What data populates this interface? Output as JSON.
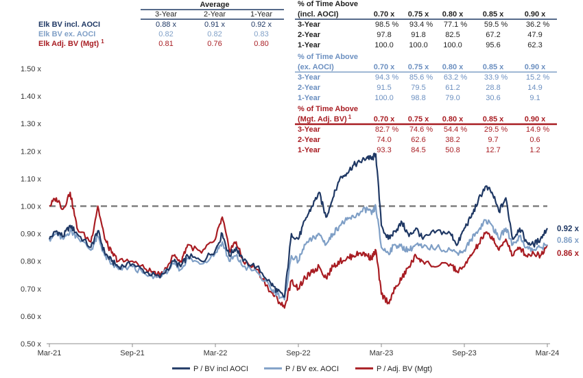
{
  "avg_table": {
    "title": "Average",
    "columns": [
      "3-Year",
      "2-Year",
      "1-Year"
    ],
    "rows": [
      {
        "name": "Elk BV incl. AOCI",
        "sup": "",
        "values": [
          "0.88 x",
          "0.91 x",
          "0.92 x"
        ],
        "color": "#1f3864"
      },
      {
        "name": "Elk BV ex. AOCI",
        "sup": "",
        "values": [
          "0.82",
          "0.82",
          "0.83"
        ],
        "color": "#7f9fc6"
      },
      {
        "name": "Elk Adj. BV (Mgt)",
        "sup": "1",
        "values": [
          "0.81",
          "0.76",
          "0.80"
        ],
        "color": "#a81c22"
      }
    ]
  },
  "pct_tables": [
    {
      "title1": "% of Time Above",
      "title2": "(incl. AOCI)",
      "sup": "",
      "color": "#1f1f1f",
      "line_color": "#1f3864",
      "columns": [
        "0.70 x",
        "0.75 x",
        "0.80 x",
        "0.85 x",
        "0.90 x"
      ],
      "rows": [
        {
          "label": "3-Year",
          "values": [
            "98.5 %",
            "93.4 %",
            "77.1 %",
            "59.5 %",
            "36.2 %"
          ]
        },
        {
          "label": "2-Year",
          "values": [
            "97.8",
            "91.8",
            "82.5",
            "67.2",
            "47.9"
          ]
        },
        {
          "label": "1-Year",
          "values": [
            "100.0",
            "100.0",
            "100.0",
            "95.6",
            "62.3"
          ]
        }
      ]
    },
    {
      "title1": "% of Time Above",
      "title2": "(ex. AOCI)",
      "sup": "",
      "color": "#6b8fc0",
      "line_color": "#7f9fc6",
      "columns": [
        "0.70 x",
        "0.75 x",
        "0.80 x",
        "0.85 x",
        "0.90 x"
      ],
      "rows": [
        {
          "label": "3-Year",
          "values": [
            "94.3 %",
            "85.6 %",
            "63.2 %",
            "33.9 %",
            "15.2 %"
          ]
        },
        {
          "label": "2-Year",
          "values": [
            "91.5",
            "79.5",
            "61.2",
            "28.8",
            "14.9"
          ]
        },
        {
          "label": "1-Year",
          "values": [
            "100.0",
            "98.8",
            "79.0",
            "30.6",
            "9.1"
          ]
        }
      ]
    },
    {
      "title1": "% of Time Above",
      "title2": "(Mgt. Adj. BV)",
      "sup": "1",
      "color": "#a81c22",
      "line_color": "#a81c22",
      "columns": [
        "0.70 x",
        "0.75 x",
        "0.80 x",
        "0.85 x",
        "0.90 x"
      ],
      "rows": [
        {
          "label": "3-Year",
          "values": [
            "82.7 %",
            "74.6 %",
            "54.4 %",
            "29.5 %",
            "14.9 %"
          ]
        },
        {
          "label": "2-Year",
          "values": [
            "74.0",
            "62.6",
            "38.2",
            "9.7",
            "0.6"
          ]
        },
        {
          "label": "1-Year",
          "values": [
            "93.3",
            "84.5",
            "50.8",
            "12.7",
            "1.2"
          ]
        }
      ]
    }
  ],
  "chart_data": {
    "type": "line",
    "title": "",
    "xlabel": "",
    "ylabel": "",
    "y_tick_labels": [
      "0.50 x",
      "0.60 x",
      "0.70 x",
      "0.80 x",
      "0.90 x",
      "1.00 x",
      "1.10 x",
      "1.20 x",
      "1.30 x",
      "1.40 x",
      "1.50 x"
    ],
    "y_ticks": [
      0.5,
      0.6,
      0.7,
      0.8,
      0.9,
      1.0,
      1.1,
      1.2,
      1.3,
      1.4,
      1.5
    ],
    "ylim": [
      0.5,
      1.5
    ],
    "xlim": [
      0,
      36
    ],
    "x_tick_labels": [
      "Mar-21",
      "Sep-21",
      "Mar-22",
      "Sep-22",
      "Mar-23",
      "Sep-23",
      "Mar-24"
    ],
    "x_ticks": [
      0,
      6,
      12,
      18,
      24,
      30,
      36
    ],
    "x_unit": "months since Mar-21",
    "reference_line": {
      "y": 1.0,
      "style": "dashed",
      "color": "#7f7f7f"
    },
    "legend_position": "bottom-center",
    "series": [
      {
        "name": "P / BV incl AOCI",
        "color": "#1f3864",
        "end_label": "0.92 x",
        "x": [
          0,
          0.5,
          1,
          1.5,
          2,
          3,
          3.5,
          4,
          4.5,
          5,
          6,
          7,
          8,
          9,
          9.5,
          10,
          11,
          12,
          12.5,
          13,
          13.5,
          14,
          15,
          16,
          16.5,
          17,
          17.5,
          18,
          18.5,
          19,
          19.5,
          20,
          20.5,
          21,
          21.5,
          22,
          22.5,
          23,
          23.3,
          23.6,
          24,
          24.5,
          25,
          25.5,
          26,
          26.5,
          27,
          28,
          29,
          29.5,
          30,
          30.5,
          31,
          31.5,
          32,
          32.5,
          33,
          33.5,
          34,
          34.5,
          35,
          35.5,
          36
        ],
        "values": [
          0.88,
          0.91,
          0.89,
          0.93,
          0.9,
          0.85,
          0.91,
          0.83,
          0.8,
          0.78,
          0.79,
          0.76,
          0.74,
          0.8,
          0.78,
          0.82,
          0.8,
          0.84,
          0.9,
          0.82,
          0.85,
          0.8,
          0.78,
          0.72,
          0.69,
          0.67,
          0.9,
          0.88,
          0.95,
          1.0,
          1.05,
          0.96,
          1.03,
          1.1,
          1.12,
          1.15,
          1.16,
          1.18,
          1.17,
          1.19,
          0.93,
          0.88,
          0.91,
          0.94,
          0.89,
          0.92,
          0.88,
          0.91,
          0.9,
          0.86,
          0.92,
          0.96,
          1.02,
          1.07,
          1.05,
          0.98,
          1.03,
          0.88,
          0.92,
          0.87,
          0.86,
          0.88,
          0.92
        ]
      },
      {
        "name": "P / BV ex. AOCI",
        "color": "#7f9fc6",
        "end_label": "0.86 x",
        "x": [
          0,
          0.5,
          1,
          1.5,
          2,
          3,
          3.5,
          4,
          4.5,
          5,
          6,
          7,
          8,
          9,
          9.5,
          10,
          11,
          12,
          12.5,
          13,
          13.5,
          14,
          15,
          16,
          16.5,
          17,
          17.5,
          18,
          18.5,
          19,
          19.5,
          20,
          20.5,
          21,
          21.5,
          22,
          22.5,
          23,
          23.3,
          23.6,
          24,
          24.5,
          25,
          25.5,
          26,
          26.5,
          27,
          28,
          29,
          29.5,
          30,
          30.5,
          31,
          31.5,
          32,
          32.5,
          33,
          33.5,
          34,
          34.5,
          35,
          35.5,
          36
        ],
        "values": [
          0.88,
          0.9,
          0.88,
          0.91,
          0.89,
          0.84,
          0.89,
          0.82,
          0.79,
          0.77,
          0.78,
          0.75,
          0.74,
          0.79,
          0.77,
          0.81,
          0.79,
          0.83,
          0.87,
          0.8,
          0.82,
          0.78,
          0.76,
          0.7,
          0.68,
          0.66,
          0.82,
          0.8,
          0.86,
          0.88,
          0.9,
          0.86,
          0.9,
          0.93,
          0.95,
          0.96,
          0.98,
          0.99,
          0.97,
          1.0,
          0.85,
          0.83,
          0.86,
          0.85,
          0.84,
          0.86,
          0.85,
          0.85,
          0.84,
          0.83,
          0.84,
          0.88,
          0.91,
          0.95,
          0.93,
          0.88,
          0.92,
          0.86,
          0.89,
          0.85,
          0.84,
          0.85,
          0.86
        ]
      },
      {
        "name": "P / Adj. BV (Mgt)",
        "color": "#a81c22",
        "end_label": "0.86 x",
        "x": [
          0,
          0.5,
          1,
          1.5,
          2,
          3,
          3.5,
          4,
          4.5,
          5,
          6,
          7,
          8,
          9,
          9.5,
          10,
          11,
          12,
          12.5,
          13,
          13.5,
          14,
          15,
          16,
          16.5,
          17,
          17.5,
          18,
          18.5,
          19,
          19.5,
          20,
          20.5,
          21,
          21.5,
          22,
          22.5,
          23,
          23.3,
          23.6,
          24,
          24.5,
          25,
          25.5,
          26,
          26.5,
          27,
          28,
          29,
          29.5,
          30,
          30.5,
          31,
          31.5,
          32,
          32.5,
          33,
          33.5,
          34,
          34.5,
          35,
          35.5,
          36
        ],
        "values": [
          1.0,
          1.03,
          0.99,
          1.05,
          0.92,
          0.87,
          1.0,
          0.88,
          0.83,
          0.8,
          0.8,
          0.77,
          0.75,
          0.82,
          0.8,
          0.86,
          0.83,
          0.88,
          0.96,
          0.84,
          0.87,
          0.8,
          0.77,
          0.69,
          0.66,
          0.63,
          0.73,
          0.7,
          0.74,
          0.76,
          0.78,
          0.74,
          0.78,
          0.8,
          0.81,
          0.82,
          0.83,
          0.82,
          0.81,
          0.84,
          0.68,
          0.65,
          0.7,
          0.74,
          0.78,
          0.82,
          0.8,
          0.78,
          0.79,
          0.76,
          0.78,
          0.82,
          0.86,
          0.9,
          0.89,
          0.84,
          0.88,
          0.82,
          0.85,
          0.82,
          0.83,
          0.82,
          0.86
        ]
      }
    ]
  }
}
